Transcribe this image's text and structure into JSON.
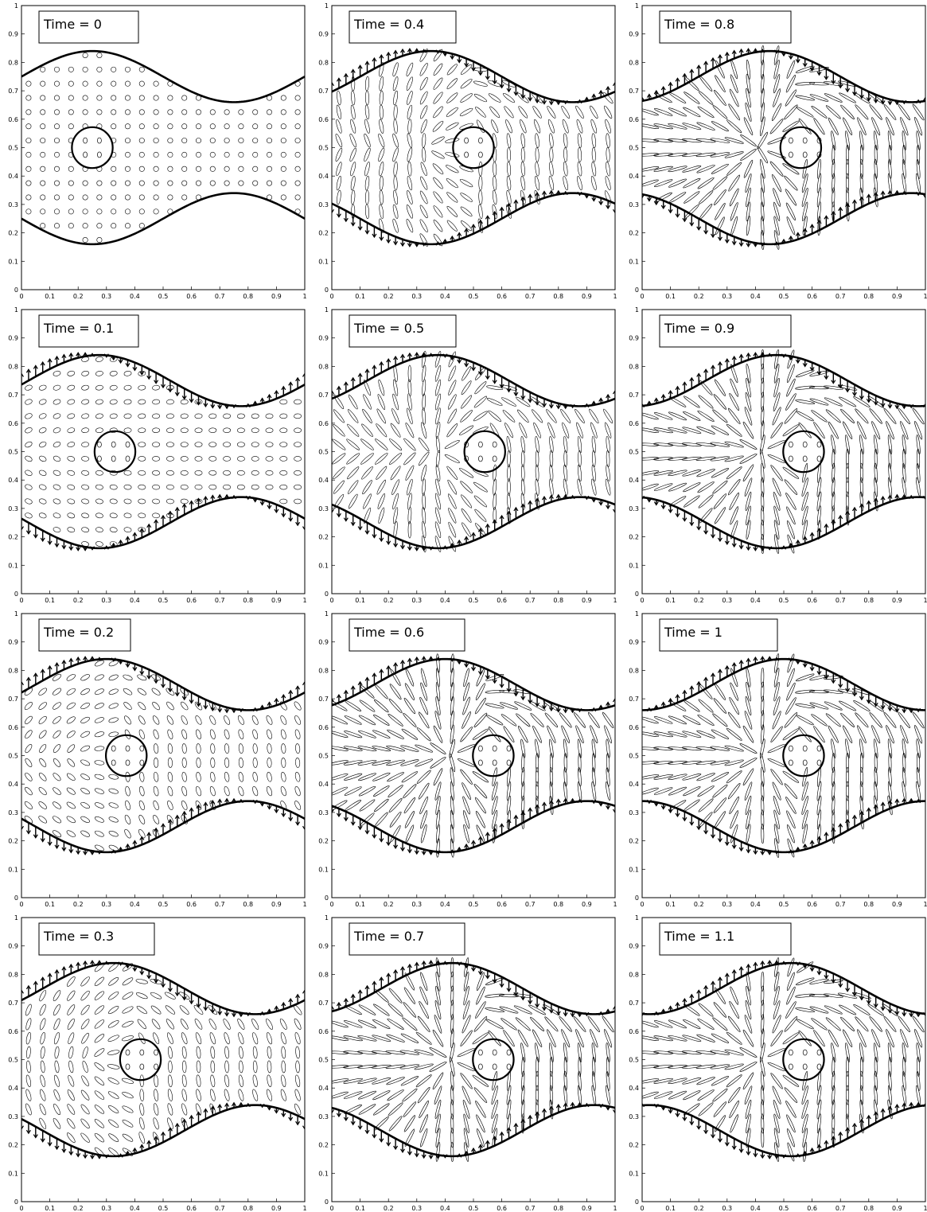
{
  "figure": {
    "layout": {
      "rows": 4,
      "columns": 3
    }
  },
  "chart_data": [
    {
      "type": "quiver",
      "label": "Time = 0",
      "time": 0,
      "axis": {
        "xlim": [
          0,
          1
        ],
        "ylim": [
          0,
          1
        ]
      }
    },
    {
      "type": "quiver",
      "label": "Time = 0.4",
      "time": 0.4,
      "axis": {
        "xlim": [
          0,
          1
        ],
        "ylim": [
          0,
          1
        ]
      }
    },
    {
      "type": "quiver",
      "label": "Time = 0.8",
      "time": 0.8,
      "axis": {
        "xlim": [
          0,
          1
        ],
        "ylim": [
          0,
          1
        ]
      }
    },
    {
      "type": "quiver",
      "label": "Time = 0.1",
      "time": 0.1,
      "axis": {
        "xlim": [
          0,
          1
        ],
        "ylim": [
          0,
          1
        ]
      }
    },
    {
      "type": "quiver",
      "label": "Time = 0.5",
      "time": 0.5,
      "axis": {
        "xlim": [
          0,
          1
        ],
        "ylim": [
          0,
          1
        ]
      }
    },
    {
      "type": "quiver",
      "label": "Time = 0.9",
      "time": 0.9,
      "axis": {
        "xlim": [
          0,
          1
        ],
        "ylim": [
          0,
          1
        ]
      }
    },
    {
      "type": "quiver",
      "label": "Time = 0.2",
      "time": 0.2,
      "axis": {
        "xlim": [
          0,
          1
        ],
        "ylim": [
          0,
          1
        ]
      }
    },
    {
      "type": "quiver",
      "label": "Time = 0.6",
      "time": 0.6,
      "axis": {
        "xlim": [
          0,
          1
        ],
        "ylim": [
          0,
          1
        ]
      }
    },
    {
      "type": "quiver",
      "label": "Time = 1",
      "time": 1,
      "axis": {
        "xlim": [
          0,
          1
        ],
        "ylim": [
          0,
          1
        ]
      }
    },
    {
      "type": "quiver",
      "label": "Time = 0.3",
      "time": 0.3,
      "axis": {
        "xlim": [
          0,
          1
        ],
        "ylim": [
          0,
          1
        ]
      }
    },
    {
      "type": "quiver",
      "label": "Time = 0.7",
      "time": 0.7,
      "axis": {
        "xlim": [
          0,
          1
        ],
        "ylim": [
          0,
          1
        ]
      }
    },
    {
      "type": "quiver",
      "label": "Time = 1.1",
      "time": 1.1,
      "axis": {
        "xlim": [
          0,
          1
        ],
        "ylim": [
          0,
          1
        ]
      }
    }
  ],
  "ticks": {
    "x": [
      "0",
      "0.1",
      "0.2",
      "0.3",
      "0.4",
      "0.5",
      "0.6",
      "0.7",
      "0.8",
      "0.9",
      "1"
    ],
    "y": [
      "0",
      "0.1",
      "0.2",
      "0.3",
      "0.4",
      "0.5",
      "0.6",
      "0.7",
      "0.8",
      "0.9",
      "1"
    ]
  },
  "geometry_model": {
    "channel": {
      "center_y": 0.5,
      "half_width_mean": 0.25,
      "wall_amplitude": 0.09,
      "wave_number": 1,
      "phase_speed": 0.25
    },
    "cylinder": {
      "radius": 0.072,
      "center_y": 0.5,
      "center_x_by_time": [
        0.25,
        0.33,
        0.37,
        0.42,
        0.5,
        0.54,
        0.57,
        0.57,
        0.56,
        0.57,
        0.57,
        0.57
      ]
    }
  },
  "colors": {
    "ink": "#000000",
    "background": "#ffffff"
  }
}
